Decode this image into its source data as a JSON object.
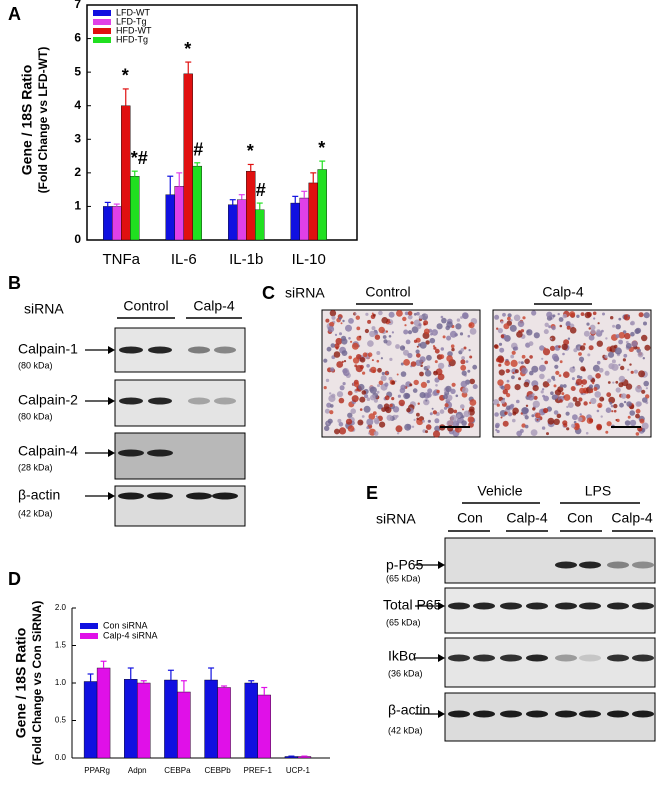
{
  "chart_data": [
    {
      "type": "bar",
      "panel": "A",
      "ylabel": "Gene / 18S Ratio",
      "ylabel2": "(Fold Change vs LFD-WT)",
      "categories": [
        "TNFa",
        "IL-6",
        "IL-1b",
        "IL-10"
      ],
      "series": [
        {
          "name": "LFD-WT",
          "color": "#1010e0",
          "values": [
            1.0,
            1.35,
            1.05,
            1.1
          ],
          "errors": [
            0.12,
            0.55,
            0.15,
            0.2
          ]
        },
        {
          "name": "LFD-Tg",
          "color": "#e040e8",
          "values": [
            1.0,
            1.6,
            1.2,
            1.25
          ],
          "errors": [
            0.07,
            0.4,
            0.15,
            0.2
          ]
        },
        {
          "name": "HFD-WT",
          "color": "#e01010",
          "values": [
            4.0,
            4.95,
            2.05,
            1.7
          ],
          "errors": [
            0.5,
            0.35,
            0.2,
            0.3
          ]
        },
        {
          "name": "HFD-Tg",
          "color": "#20e020",
          "values": [
            1.9,
            2.2,
            0.9,
            2.1
          ],
          "errors": [
            0.15,
            0.1,
            0.2,
            0.25
          ]
        }
      ],
      "annotations": [
        {
          "text": "*",
          "category": 0,
          "series": 2
        },
        {
          "text": "*#",
          "category": 0,
          "series": 3
        },
        {
          "text": "*",
          "category": 1,
          "series": 2
        },
        {
          "text": "#",
          "category": 1,
          "series": 3
        },
        {
          "text": "*",
          "category": 2,
          "series": 2
        },
        {
          "text": "#",
          "category": 2,
          "series": 3
        },
        {
          "text": "*",
          "category": 3,
          "series": 3
        }
      ],
      "ylim": [
        0,
        7
      ],
      "yticks": [
        0,
        1,
        2,
        3,
        4,
        5,
        6,
        7
      ],
      "grid": false,
      "legend": "top-left"
    },
    {
      "type": "bar",
      "panel": "D",
      "ylabel": "Gene / 18S Ratio",
      "ylabel2": "(Fold Change vs Con SiRNA)",
      "categories": [
        "PPARg",
        "Adpn",
        "CEBPa",
        "CEBPb",
        "PREF-1",
        "UCP-1"
      ],
      "series": [
        {
          "name": "Con siRNA",
          "color": "#1010e0",
          "values": [
            1.02,
            1.05,
            1.04,
            1.04,
            1.0,
            0.02
          ],
          "errors": [
            0.1,
            0.15,
            0.13,
            0.16,
            0.03,
            0.005
          ]
        },
        {
          "name": "Calp-4 siRNA",
          "color": "#e010e8",
          "values": [
            1.2,
            1.0,
            0.88,
            0.94,
            0.84,
            0.02
          ],
          "errors": [
            0.09,
            0.03,
            0.15,
            0.02,
            0.1,
            0.005
          ]
        }
      ],
      "ylim": [
        0,
        2.0
      ],
      "yticks": [
        {
          "value": 0,
          "label": "0.0"
        },
        {
          "value": 0.5,
          "label": "0.5"
        },
        {
          "value": 1.0,
          "label": "1.0"
        },
        {
          "value": 1.5,
          "label": "1.5"
        },
        {
          "value": 2.0,
          "label": "2.0"
        }
      ],
      "grid": false,
      "legend": "top-left"
    }
  ],
  "panel_b": {
    "label": "B",
    "siRNA": "siRNA",
    "groups": [
      "Control",
      "Calp-4"
    ],
    "rows": [
      {
        "name": "Calpain-1",
        "size": "(80 kDa)"
      },
      {
        "name": "Calpain-2",
        "size": "(80 kDa)"
      },
      {
        "name": "Calpain-4",
        "size": "(28 kDa)"
      },
      {
        "name": "β-actin",
        "size": "(42 kDa)"
      }
    ]
  },
  "panel_c": {
    "label": "C",
    "siRNA": "siRNA",
    "groups": [
      "Control",
      "Calp-4"
    ]
  },
  "panel_e": {
    "label": "E",
    "treatments": [
      "Vehicle",
      "LPS"
    ],
    "siRNA": "siRNA",
    "groups": [
      "Con",
      "Calp-4",
      "Con",
      "Calp-4"
    ],
    "rows": [
      {
        "name": "p-P65",
        "size": "(65 kDa)"
      },
      {
        "name": "Total P65",
        "size": "(65 kDa)"
      },
      {
        "name": "IkBα",
        "size": "(36 kDa)"
      },
      {
        "name": "β-actin",
        "size": "(42 kDa)"
      }
    ]
  }
}
